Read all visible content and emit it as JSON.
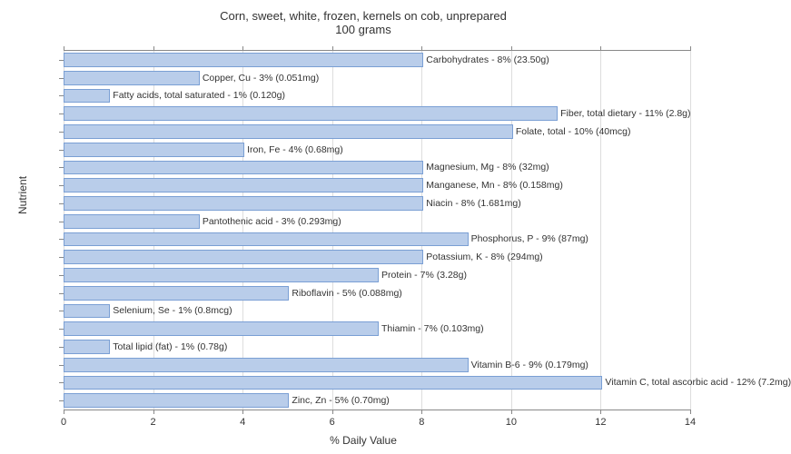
{
  "chart": {
    "type": "bar-horizontal",
    "title_line1": "Corn, sweet, white, frozen, kernels on cob, unprepared",
    "title_line2": "100 grams",
    "title_fontsize": 13,
    "y_axis_label": "Nutrient",
    "x_axis_label": "% Daily Value",
    "label_fontsize": 12,
    "background_color": "#ffffff",
    "grid_color": "#dddddd",
    "border_color": "#888888",
    "bar_fill_color": "#b9cdea",
    "bar_border_color": "#7a9fd4",
    "bar_label_fontsize": 10.5,
    "xlim": [
      0,
      14
    ],
    "xtick_step": 2,
    "xticks": [
      0,
      2,
      4,
      6,
      8,
      10,
      12,
      14
    ],
    "bar_height_ratio": 0.8,
    "nutrients": [
      {
        "label": "Carbohydrates - 8% (23.50g)",
        "value": 8
      },
      {
        "label": "Copper, Cu - 3% (0.051mg)",
        "value": 3
      },
      {
        "label": "Fatty acids, total saturated - 1% (0.120g)",
        "value": 1
      },
      {
        "label": "Fiber, total dietary - 11% (2.8g)",
        "value": 11
      },
      {
        "label": "Folate, total - 10% (40mcg)",
        "value": 10
      },
      {
        "label": "Iron, Fe - 4% (0.68mg)",
        "value": 4
      },
      {
        "label": "Magnesium, Mg - 8% (32mg)",
        "value": 8
      },
      {
        "label": "Manganese, Mn - 8% (0.158mg)",
        "value": 8
      },
      {
        "label": "Niacin - 8% (1.681mg)",
        "value": 8
      },
      {
        "label": "Pantothenic acid - 3% (0.293mg)",
        "value": 3
      },
      {
        "label": "Phosphorus, P - 9% (87mg)",
        "value": 9
      },
      {
        "label": "Potassium, K - 8% (294mg)",
        "value": 8
      },
      {
        "label": "Protein - 7% (3.28g)",
        "value": 7
      },
      {
        "label": "Riboflavin - 5% (0.088mg)",
        "value": 5
      },
      {
        "label": "Selenium, Se - 1% (0.8mcg)",
        "value": 1
      },
      {
        "label": "Thiamin - 7% (0.103mg)",
        "value": 7
      },
      {
        "label": "Total lipid (fat) - 1% (0.78g)",
        "value": 1
      },
      {
        "label": "Vitamin B-6 - 9% (0.179mg)",
        "value": 9
      },
      {
        "label": "Vitamin C, total ascorbic acid - 12% (7.2mg)",
        "value": 12
      },
      {
        "label": "Zinc, Zn - 5% (0.70mg)",
        "value": 5
      }
    ]
  }
}
